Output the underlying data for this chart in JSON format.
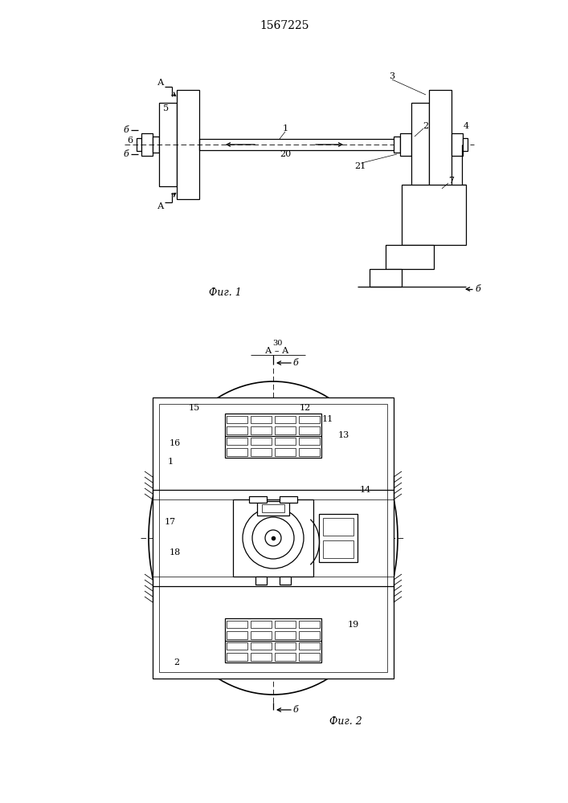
{
  "title": "1567225",
  "title_fontsize": 10,
  "fig1_label": "Фиг. 1",
  "fig2_label": "Фиг. 2",
  "bg_color": "#ffffff",
  "line_color": "#000000",
  "font_size_numbers": 8,
  "font_size_caption": 9
}
